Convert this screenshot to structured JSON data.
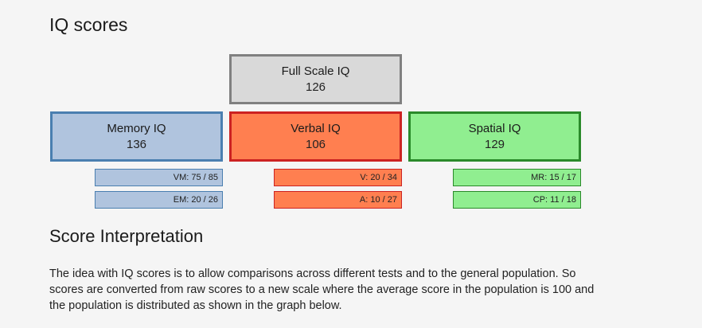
{
  "page": {
    "title": "IQ scores"
  },
  "full_scale": {
    "label": "Full Scale IQ",
    "score": "126",
    "fill": "#d9d9d9",
    "border": "#808080"
  },
  "indices": [
    {
      "label": "Memory IQ",
      "score": "136",
      "fill": "#b0c4de",
      "border": "#4a7fb0",
      "subtests": [
        "VM: 75 / 85",
        "EM: 20 / 26"
      ]
    },
    {
      "label": "Verbal IQ",
      "score": "106",
      "fill": "#ff7f50",
      "border": "#cc2222",
      "subtests": [
        "V: 20 / 34",
        "A: 10 / 27"
      ]
    },
    {
      "label": "Spatial IQ",
      "score": "129",
      "fill": "#90ee90",
      "border": "#2a8a2a",
      "subtests": [
        "MR: 15 / 17",
        "CP: 11 / 18"
      ]
    }
  ],
  "interpretation": {
    "heading": "Score Interpretation",
    "text": "The idea with IQ scores is to allow comparisons across different tests and to the general population. So scores are converted from raw scores to a new scale where the average score in the population is 100 and the population is distributed as shown in the graph below."
  }
}
